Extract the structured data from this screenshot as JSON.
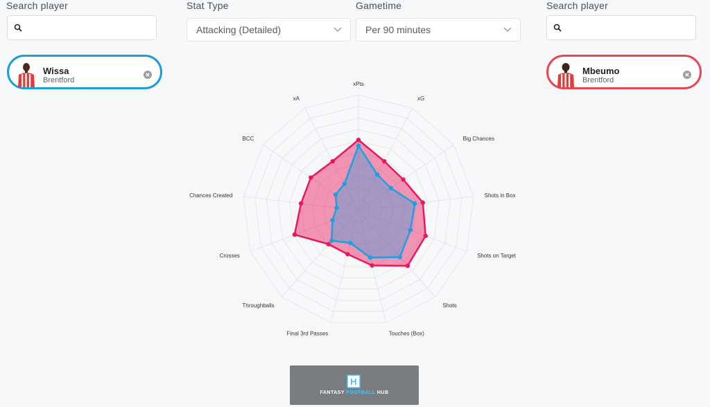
{
  "left_panel": {
    "search_label": "Search player",
    "search_placeholder": "",
    "player": {
      "name": "Wissa",
      "team": "Brentford",
      "color": "#1a9ed8"
    }
  },
  "right_panel": {
    "search_label": "Search player",
    "search_placeholder": "",
    "player": {
      "name": "Mbeumo",
      "team": "Brentford",
      "color": "#e84652"
    }
  },
  "stat_type": {
    "label": "Stat Type",
    "selected": "Attacking (Detailed)"
  },
  "gametime": {
    "label": "Gametime",
    "selected": "Per 90 minutes"
  },
  "chart_data": {
    "type": "radar",
    "axes": [
      "xPts",
      "xG",
      "Big Chances",
      "Shots in Box",
      "Shots on Target",
      "Shots",
      "Touches (Box)",
      "Final 3rd Passes",
      "Throughballs",
      "Crosses",
      "Chances Created",
      "BCC",
      "xA"
    ],
    "rings": 10,
    "series": [
      {
        "name": "Mbeumo",
        "color": "#e8195a",
        "values": [
          0.61,
          0.48,
          0.47,
          0.56,
          0.62,
          0.64,
          0.49,
          0.39,
          0.39,
          0.59,
          0.5,
          0.5,
          0.48
        ]
      },
      {
        "name": "Wissa",
        "color": "#1ba1e2",
        "values": [
          0.56,
          0.35,
          0.34,
          0.49,
          0.48,
          0.54,
          0.42,
          0.29,
          0.35,
          0.24,
          0.19,
          0.24,
          0.26
        ]
      }
    ]
  },
  "banner": {
    "brand_a": "FANTASY ",
    "brand_b": "FOOTBALL",
    "brand_c": " HUB",
    "logo_letter": "H"
  }
}
